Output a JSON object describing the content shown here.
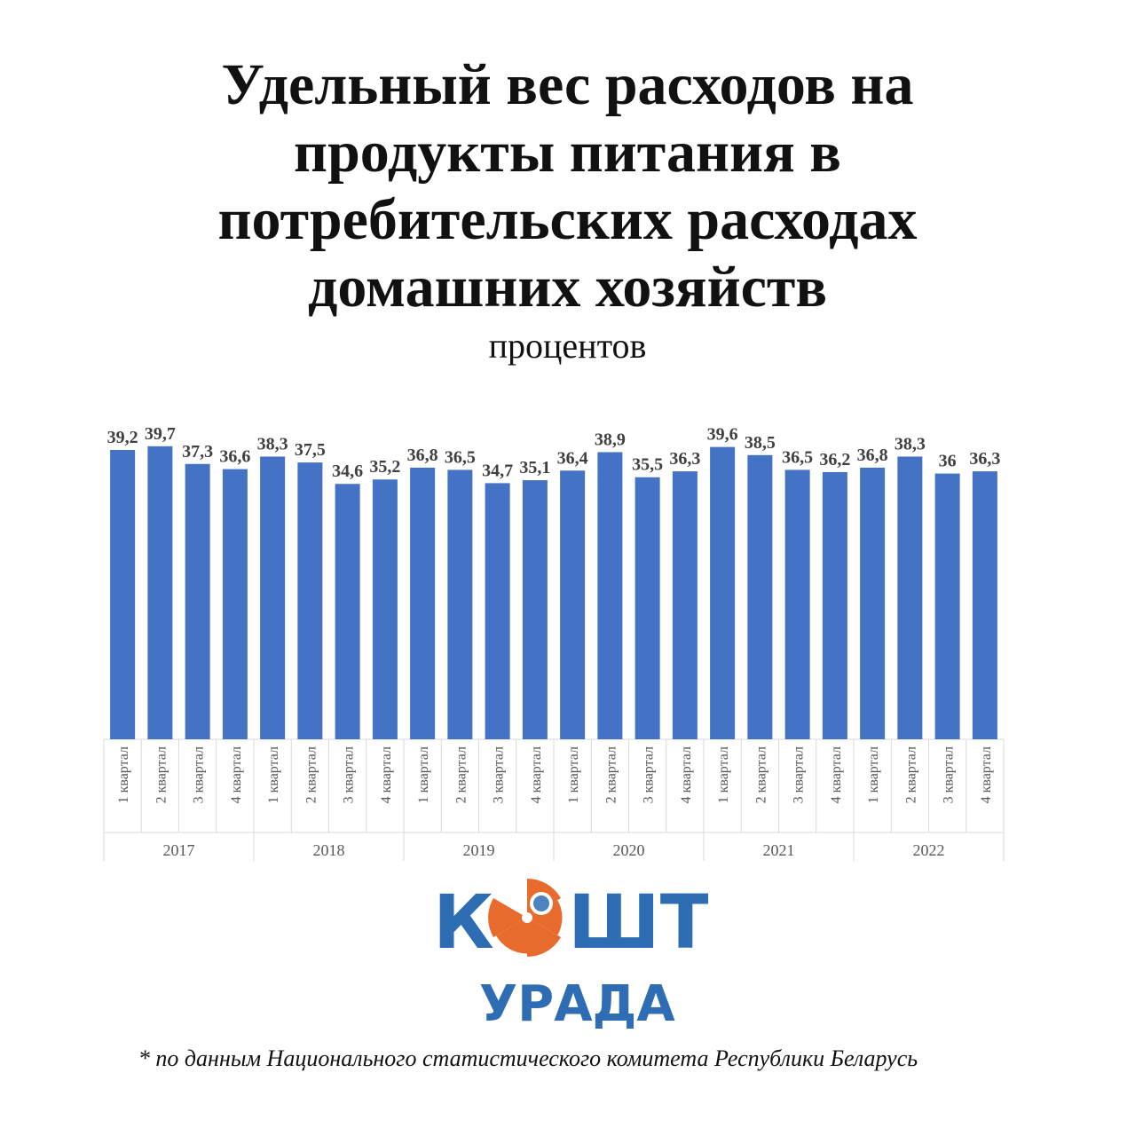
{
  "title_lines": [
    "Удельный вес расходов на",
    "продукты питания в",
    "потребительских расходах",
    "домашних хозяйств"
  ],
  "subtitle": "процентов",
  "chart_data": {
    "type": "bar",
    "title": "Удельный вес расходов на продукты питания в потребительских расходах домашних хозяйств",
    "subtitle": "процентов",
    "groups": [
      {
        "year": "2017",
        "categories": [
          "1 квартал",
          "2 квартал",
          "3 квартал",
          "4 квартал"
        ],
        "values": [
          39.2,
          39.7,
          37.3,
          36.6
        ],
        "labels": [
          "39,2",
          "39,7",
          "37,3",
          "36,6"
        ]
      },
      {
        "year": "2018",
        "categories": [
          "1 квартал",
          "2 квартал",
          "3 квартал",
          "4 квартал"
        ],
        "values": [
          38.3,
          37.5,
          34.6,
          35.2
        ],
        "labels": [
          "38,3",
          "37,5",
          "34,6",
          "35,2"
        ]
      },
      {
        "year": "2019",
        "categories": [
          "1 квартал",
          "2 квартал",
          "3 квартал",
          "4 квартал"
        ],
        "values": [
          36.8,
          36.5,
          34.7,
          35.1
        ],
        "labels": [
          "36,8",
          "36,5",
          "34,7",
          "35,1"
        ]
      },
      {
        "year": "2020",
        "categories": [
          "1 квартал",
          "2 квартал",
          "3 квартал",
          "4 квартал"
        ],
        "values": [
          36.4,
          38.9,
          35.5,
          36.3
        ],
        "labels": [
          "36,4",
          "38,9",
          "35,5",
          "36,3"
        ]
      },
      {
        "year": "2021",
        "categories": [
          "1 квартал",
          "2 квартал",
          "3 квартал",
          "4 квартал"
        ],
        "values": [
          39.6,
          38.5,
          36.5,
          36.2
        ],
        "labels": [
          "39,6",
          "38,5",
          "36,5",
          "36,2"
        ]
      },
      {
        "year": "2022",
        "categories": [
          "1 квартал",
          "2 квартал",
          "3 квартал",
          "4 квартал"
        ],
        "values": [
          36.8,
          38.3,
          36.0,
          36.3
        ],
        "labels": [
          "36,8",
          "38,3",
          "36",
          "36,3"
        ]
      }
    ],
    "ylim": [
      0,
      40
    ],
    "grid": false,
    "legend": "none",
    "bar_color": "#4472C4",
    "label_color": "#404040"
  },
  "logo": {
    "word_top_left": "К",
    "word_top_right": "ШТ",
    "word_bottom": "УРАДА",
    "colors": {
      "blue": "#2E6DB4",
      "orange": "#E86A2C"
    }
  },
  "footnote": "* по данным Национального статистического комитета Республики Беларусь"
}
